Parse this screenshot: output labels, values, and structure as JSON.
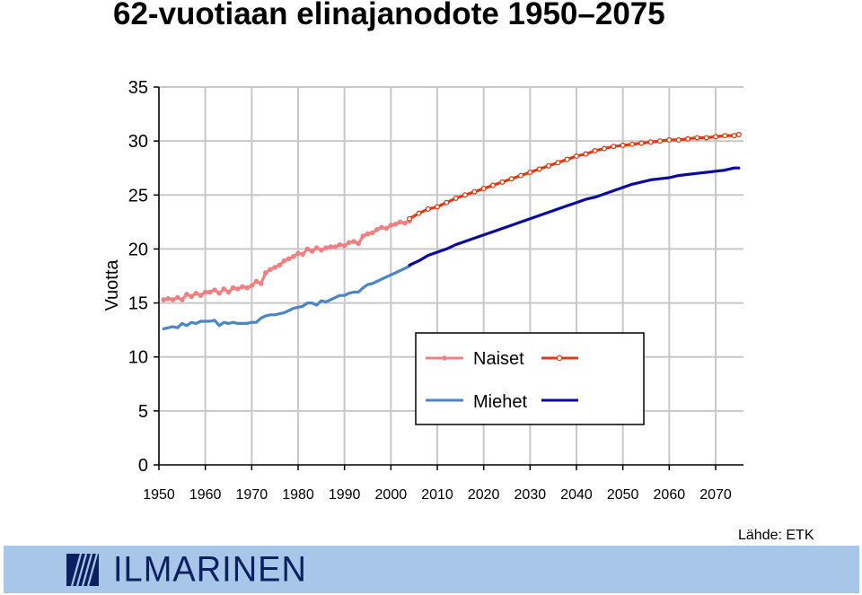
{
  "title": "62-vuotiaan elinajanodote 1950–2075",
  "source": "Lähde: ETK",
  "logo": {
    "name": "ILMARINEN"
  },
  "colors": {
    "naiset_hist": "#f08080",
    "naiset_proj": "#e03a10",
    "miehet_hist": "#4a86c6",
    "miehet_proj": "#0a0aa0",
    "grid": "#c8c8c8",
    "footer": "#a8c7e8"
  },
  "chart_data": {
    "type": "line",
    "title": "62-vuotiaan elinajanodote 1950–2075",
    "xlabel": "",
    "ylabel": "Vuotta",
    "xlim": [
      1950,
      2076
    ],
    "ylim": [
      0,
      35
    ],
    "x_ticks": [
      1950,
      1960,
      1970,
      1980,
      1990,
      2000,
      2010,
      2020,
      2030,
      2040,
      2050,
      2060,
      2070
    ],
    "y_ticks": [
      0,
      5,
      10,
      15,
      20,
      25,
      30,
      35
    ],
    "grid": true,
    "legend": {
      "position": "center-right",
      "entries": [
        "Naiset",
        "Miehet"
      ]
    },
    "series": [
      {
        "name": "Naiset",
        "segment": "historical",
        "x": [
          1951,
          1952,
          1953,
          1954,
          1955,
          1956,
          1957,
          1958,
          1959,
          1960,
          1961,
          1962,
          1963,
          1964,
          1965,
          1966,
          1967,
          1968,
          1969,
          1970,
          1971,
          1972,
          1973,
          1974,
          1975,
          1976,
          1977,
          1978,
          1979,
          1980,
          1981,
          1982,
          1983,
          1984,
          1985,
          1986,
          1987,
          1988,
          1989,
          1990,
          1991,
          1992,
          1993,
          1994,
          1995,
          1996,
          1997,
          1998,
          1999,
          2000,
          2001,
          2002,
          2003,
          2004
        ],
        "y": [
          15.3,
          15.4,
          15.3,
          15.5,
          15.3,
          15.8,
          15.6,
          15.9,
          15.7,
          16.0,
          16.0,
          16.2,
          15.9,
          16.3,
          16.0,
          16.4,
          16.3,
          16.5,
          16.4,
          16.6,
          17.0,
          16.8,
          17.8,
          18.1,
          18.3,
          18.5,
          18.9,
          19.1,
          19.3,
          19.6,
          19.5,
          20.0,
          19.8,
          20.1,
          19.9,
          20.1,
          20.2,
          20.2,
          20.4,
          20.3,
          20.6,
          20.7,
          20.5,
          21.2,
          21.4,
          21.5,
          21.8,
          22.0,
          21.9,
          22.2,
          22.3,
          22.5,
          22.4,
          22.6
        ]
      },
      {
        "name": "Naiset",
        "segment": "projection",
        "x": [
          2004,
          2006,
          2008,
          2010,
          2012,
          2014,
          2016,
          2018,
          2020,
          2022,
          2024,
          2026,
          2028,
          2030,
          2032,
          2034,
          2036,
          2038,
          2040,
          2042,
          2044,
          2046,
          2048,
          2050,
          2052,
          2054,
          2056,
          2058,
          2060,
          2062,
          2064,
          2066,
          2068,
          2070,
          2072,
          2074,
          2075
        ],
        "y": [
          22.8,
          23.3,
          23.7,
          23.9,
          24.3,
          24.7,
          25.0,
          25.3,
          25.6,
          25.9,
          26.2,
          26.5,
          26.8,
          27.1,
          27.4,
          27.7,
          28.0,
          28.3,
          28.6,
          28.8,
          29.1,
          29.3,
          29.5,
          29.6,
          29.7,
          29.8,
          29.9,
          30.0,
          30.1,
          30.1,
          30.2,
          30.3,
          30.3,
          30.4,
          30.5,
          30.5,
          30.6
        ]
      },
      {
        "name": "Miehet",
        "segment": "historical",
        "x": [
          1951,
          1952,
          1953,
          1954,
          1955,
          1956,
          1957,
          1958,
          1959,
          1960,
          1961,
          1962,
          1963,
          1964,
          1965,
          1966,
          1967,
          1968,
          1969,
          1970,
          1971,
          1972,
          1973,
          1974,
          1975,
          1976,
          1977,
          1978,
          1979,
          1980,
          1981,
          1982,
          1983,
          1984,
          1985,
          1986,
          1987,
          1988,
          1989,
          1990,
          1991,
          1992,
          1993,
          1994,
          1995,
          1996,
          1997,
          1998,
          1999,
          2000,
          2001,
          2002,
          2003,
          2004
        ],
        "y": [
          12.6,
          12.7,
          12.8,
          12.7,
          13.1,
          12.9,
          13.2,
          13.1,
          13.3,
          13.3,
          13.3,
          13.4,
          12.9,
          13.2,
          13.1,
          13.2,
          13.1,
          13.1,
          13.1,
          13.2,
          13.2,
          13.6,
          13.8,
          13.9,
          13.9,
          14.0,
          14.1,
          14.3,
          14.5,
          14.6,
          14.7,
          15.0,
          15.0,
          14.8,
          15.2,
          15.1,
          15.3,
          15.5,
          15.7,
          15.7,
          15.9,
          16.0,
          16.0,
          16.4,
          16.7,
          16.8,
          17.0,
          17.2,
          17.4,
          17.6,
          17.8,
          18.0,
          18.2,
          18.4
        ]
      },
      {
        "name": "Miehet",
        "segment": "projection",
        "x": [
          2004,
          2006,
          2008,
          2010,
          2012,
          2014,
          2016,
          2018,
          2020,
          2022,
          2024,
          2026,
          2028,
          2030,
          2032,
          2034,
          2036,
          2038,
          2040,
          2042,
          2044,
          2046,
          2048,
          2050,
          2052,
          2054,
          2056,
          2058,
          2060,
          2062,
          2064,
          2066,
          2068,
          2070,
          2072,
          2074,
          2075
        ],
        "y": [
          18.5,
          18.9,
          19.4,
          19.7,
          20.0,
          20.4,
          20.7,
          21.0,
          21.3,
          21.6,
          21.9,
          22.2,
          22.5,
          22.8,
          23.1,
          23.4,
          23.7,
          24.0,
          24.3,
          24.6,
          24.8,
          25.1,
          25.4,
          25.7,
          26.0,
          26.2,
          26.4,
          26.5,
          26.6,
          26.8,
          26.9,
          27.0,
          27.1,
          27.2,
          27.3,
          27.5,
          27.5
        ]
      }
    ]
  }
}
